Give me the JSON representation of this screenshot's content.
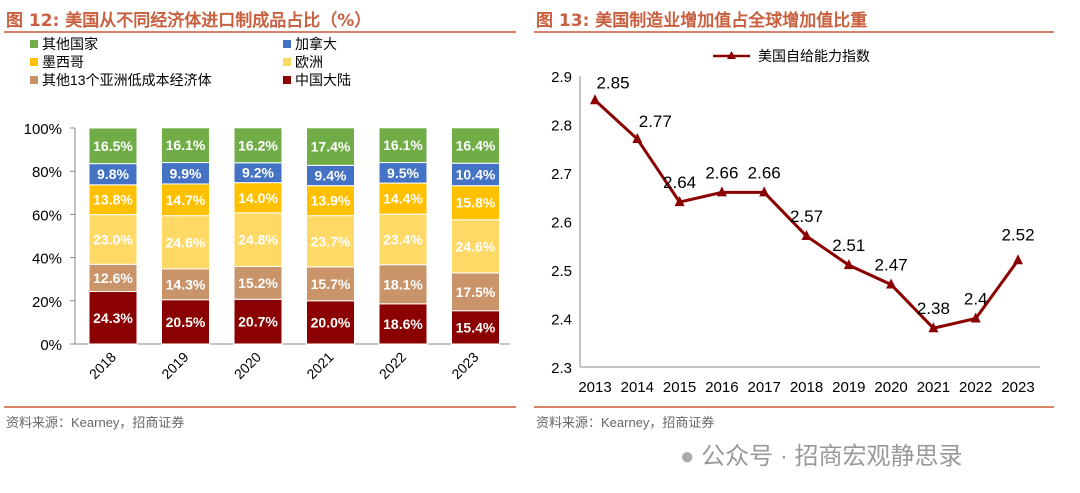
{
  "source_label": "资料来源：Kearney，招商证券",
  "watermark": "公众号 · 招商宏观静思录",
  "chart_data": [
    {
      "type": "bar",
      "stacked": true,
      "title": "图 12:  美国从不同经济体进口制成品占比（%）",
      "categories": [
        "2018",
        "2019",
        "2020",
        "2021",
        "2022",
        "2023"
      ],
      "yticks": [
        "0%",
        "20%",
        "40%",
        "60%",
        "80%",
        "100%"
      ],
      "ylim": [
        0,
        100
      ],
      "legend_position": "top",
      "series": [
        {
          "name": "中国大陆",
          "color": "#8b0000",
          "values": [
            24.3,
            20.5,
            20.7,
            20.0,
            18.6,
            15.4
          ]
        },
        {
          "name": "其他13个亚洲低成本经济体",
          "color": "#c9946a",
          "values": [
            12.6,
            14.3,
            15.2,
            15.7,
            18.1,
            17.5
          ]
        },
        {
          "name": "欧洲",
          "color": "#ffd966",
          "values": [
            23.0,
            24.6,
            24.8,
            23.7,
            23.4,
            24.6
          ]
        },
        {
          "name": "墨西哥",
          "color": "#ffc000",
          "values": [
            13.8,
            14.7,
            14.0,
            13.9,
            14.4,
            15.8
          ]
        },
        {
          "name": "加拿大",
          "color": "#4472c4",
          "values": [
            9.8,
            9.9,
            9.2,
            9.4,
            9.5,
            10.4
          ]
        },
        {
          "name": "其他国家",
          "color": "#70ad47",
          "values": [
            16.5,
            16.1,
            16.2,
            17.4,
            16.1,
            16.4
          ]
        }
      ],
      "legend_order": [
        "其他国家",
        "加拿大",
        "墨西哥",
        "欧洲",
        "其他13个亚洲低成本经济体",
        "中国大陆"
      ]
    },
    {
      "type": "line",
      "title": "图 13:  美国制造业增加值占全球增加值比重",
      "x": [
        "2013",
        "2014",
        "2015",
        "2016",
        "2017",
        "2018",
        "2019",
        "2020",
        "2021",
        "2022",
        "2023"
      ],
      "ylim": [
        2.3,
        2.9
      ],
      "yticks": [
        "2.3",
        "2.4",
        "2.5",
        "2.6",
        "2.7",
        "2.8",
        "2.9"
      ],
      "legend_position": "top",
      "series": [
        {
          "name": "美国自给能力指数",
          "color": "#8b0000",
          "values": [
            2.85,
            2.77,
            2.64,
            2.66,
            2.66,
            2.57,
            2.51,
            2.47,
            2.38,
            2.4,
            2.52
          ],
          "labels": [
            "2.85",
            "2.77",
            "2.64",
            "2.66",
            "2.66",
            "2.57",
            "2.51",
            "2.47",
            "2.38",
            "2.4",
            "2.52"
          ]
        }
      ]
    }
  ]
}
